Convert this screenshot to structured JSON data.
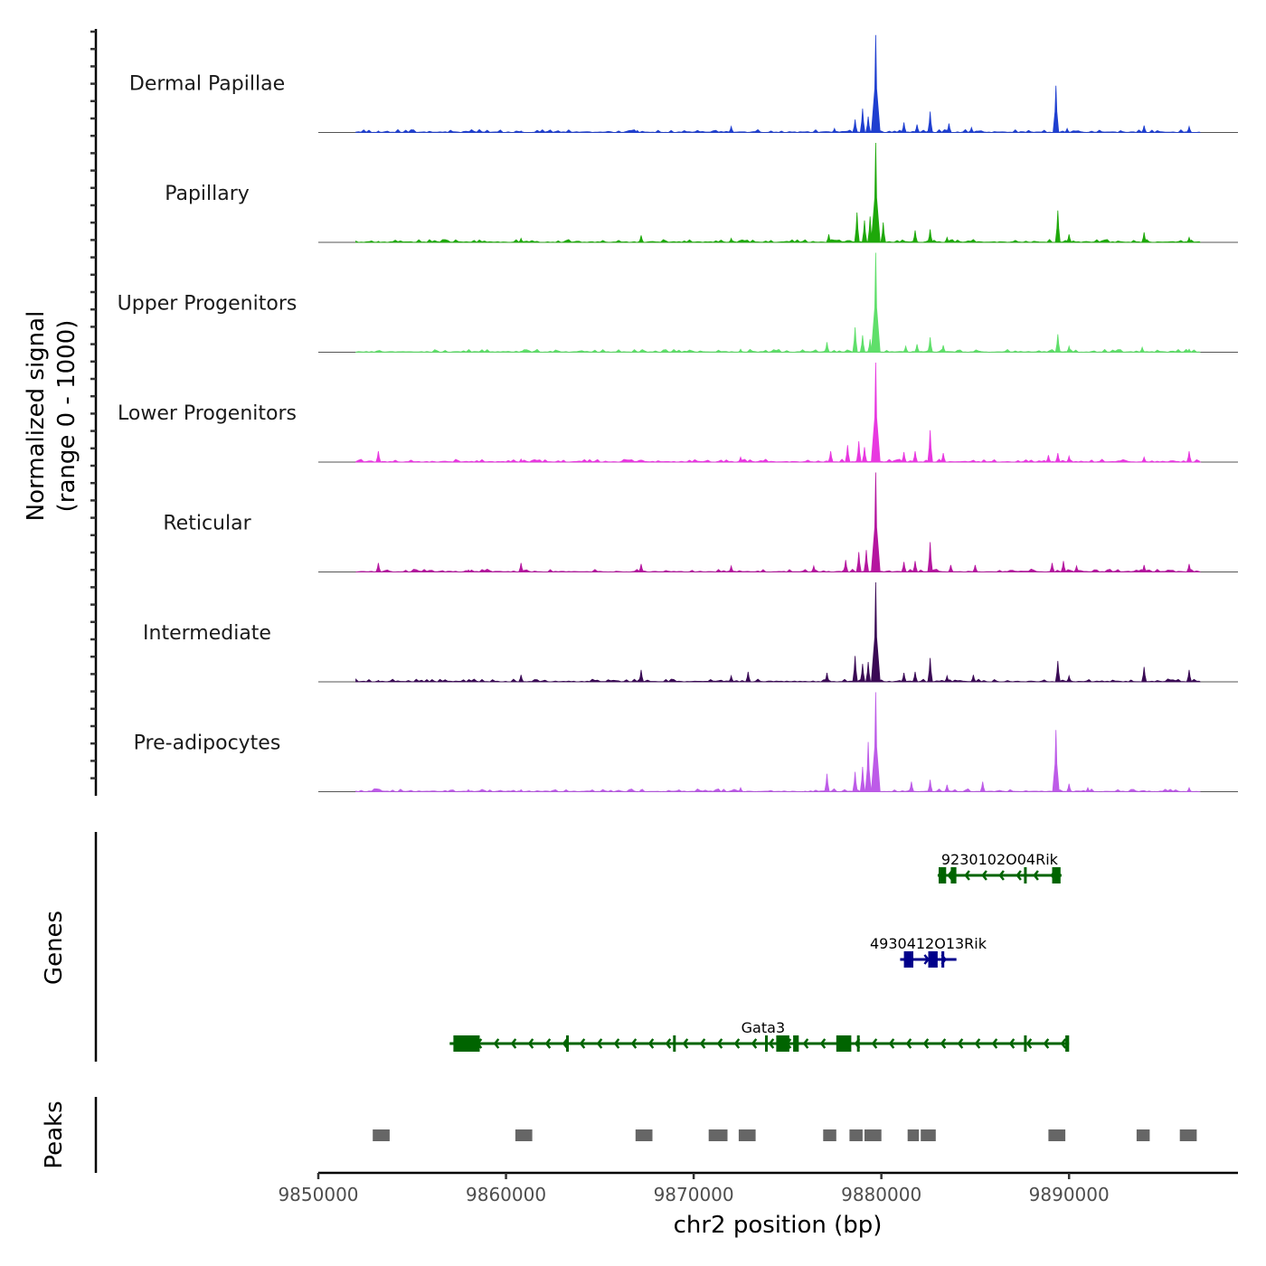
{
  "chart_data": {
    "type": "area",
    "title": "",
    "chromosome": "chr2",
    "xlabel": "chr2 position (bp)",
    "ylabel": "Normalized signal\n(range 0 - 1000)",
    "xlim": [
      9850000,
      9899000
    ],
    "ylim": [
      0,
      1000
    ],
    "x_ticks": [
      9850000,
      9860000,
      9870000,
      9880000,
      9890000
    ],
    "x_tick_labels": [
      "9850000",
      "9860000",
      "9870000",
      "9880000",
      "9890000"
    ],
    "panel_labels": {
      "genes": "Genes",
      "peaks": "Peaks"
    },
    "series": [
      {
        "name": "Dermal Papillae",
        "color": "#1f3fd0",
        "points": [
          [
            9853200,
            15
          ],
          [
            9858000,
            10
          ],
          [
            9860800,
            15
          ],
          [
            9867000,
            20
          ],
          [
            9872000,
            60
          ],
          [
            9877500,
            40
          ],
          [
            9878600,
            130
          ],
          [
            9879000,
            240
          ],
          [
            9879300,
            160
          ],
          [
            9879700,
            980
          ],
          [
            9881200,
            100
          ],
          [
            9881900,
            80
          ],
          [
            9882600,
            210
          ],
          [
            9883600,
            90
          ],
          [
            9884800,
            50
          ],
          [
            9889300,
            470
          ],
          [
            9889900,
            40
          ],
          [
            9894000,
            70
          ],
          [
            9896400,
            60
          ]
        ]
      },
      {
        "name": "Papillary",
        "color": "#1ea80a",
        "points": [
          [
            9853200,
            10
          ],
          [
            9860800,
            40
          ],
          [
            9867200,
            70
          ],
          [
            9872000,
            40
          ],
          [
            9877200,
            80
          ],
          [
            9878700,
            300
          ],
          [
            9879100,
            220
          ],
          [
            9879400,
            260
          ],
          [
            9879700,
            1000
          ],
          [
            9880100,
            200
          ],
          [
            9881800,
            120
          ],
          [
            9882600,
            130
          ],
          [
            9883500,
            50
          ],
          [
            9889400,
            320
          ],
          [
            9890000,
            80
          ],
          [
            9894000,
            100
          ],
          [
            9896400,
            50
          ]
        ]
      },
      {
        "name": "Upper Progenitors",
        "color": "#5fdf6a",
        "points": [
          [
            9860800,
            10
          ],
          [
            9867200,
            20
          ],
          [
            9872500,
            30
          ],
          [
            9877100,
            100
          ],
          [
            9878600,
            250
          ],
          [
            9879000,
            170
          ],
          [
            9879400,
            130
          ],
          [
            9879700,
            1000
          ],
          [
            9881300,
            60
          ],
          [
            9881900,
            80
          ],
          [
            9882600,
            150
          ],
          [
            9883300,
            70
          ],
          [
            9889400,
            180
          ],
          [
            9890000,
            60
          ],
          [
            9893900,
            50
          ],
          [
            9896400,
            30
          ]
        ]
      },
      {
        "name": "Lower Progenitors",
        "color": "#e838e0",
        "points": [
          [
            9853200,
            110
          ],
          [
            9860800,
            30
          ],
          [
            9867200,
            20
          ],
          [
            9872500,
            50
          ],
          [
            9877300,
            110
          ],
          [
            9878200,
            170
          ],
          [
            9878800,
            210
          ],
          [
            9879100,
            150
          ],
          [
            9879700,
            1000
          ],
          [
            9881200,
            100
          ],
          [
            9881800,
            110
          ],
          [
            9882600,
            320
          ],
          [
            9883300,
            90
          ],
          [
            9888900,
            70
          ],
          [
            9889400,
            90
          ],
          [
            9890000,
            60
          ],
          [
            9894000,
            50
          ],
          [
            9896400,
            110
          ]
        ]
      },
      {
        "name": "Reticular",
        "color": "#b5169f",
        "points": [
          [
            9853200,
            90
          ],
          [
            9858000,
            20
          ],
          [
            9860800,
            90
          ],
          [
            9867200,
            80
          ],
          [
            9872000,
            60
          ],
          [
            9876400,
            60
          ],
          [
            9878100,
            120
          ],
          [
            9878800,
            200
          ],
          [
            9879200,
            220
          ],
          [
            9879700,
            1000
          ],
          [
            9881200,
            100
          ],
          [
            9881800,
            110
          ],
          [
            9882600,
            300
          ],
          [
            9883700,
            70
          ],
          [
            9885000,
            70
          ],
          [
            9889100,
            90
          ],
          [
            9889700,
            110
          ],
          [
            9890400,
            60
          ],
          [
            9894000,
            70
          ],
          [
            9896400,
            80
          ]
        ]
      },
      {
        "name": "Intermediate",
        "color": "#3a0a55",
        "points": [
          [
            9853200,
            15
          ],
          [
            9860800,
            70
          ],
          [
            9867200,
            120
          ],
          [
            9872000,
            60
          ],
          [
            9872900,
            100
          ],
          [
            9877100,
            90
          ],
          [
            9878600,
            260
          ],
          [
            9879000,
            180
          ],
          [
            9879300,
            200
          ],
          [
            9879700,
            1000
          ],
          [
            9881200,
            90
          ],
          [
            9881800,
            100
          ],
          [
            9882600,
            240
          ],
          [
            9883500,
            60
          ],
          [
            9884900,
            70
          ],
          [
            9889400,
            210
          ],
          [
            9890000,
            60
          ],
          [
            9894000,
            150
          ],
          [
            9896400,
            120
          ]
        ]
      },
      {
        "name": "Pre-adipocytes",
        "color": "#bd5be8",
        "points": [
          [
            9853200,
            20
          ],
          [
            9858000,
            20
          ],
          [
            9860800,
            20
          ],
          [
            9867200,
            20
          ],
          [
            9872500,
            40
          ],
          [
            9877100,
            180
          ],
          [
            9878600,
            200
          ],
          [
            9879000,
            250
          ],
          [
            9879300,
            500
          ],
          [
            9879700,
            1000
          ],
          [
            9881600,
            100
          ],
          [
            9882600,
            120
          ],
          [
            9883500,
            70
          ],
          [
            9885400,
            100
          ],
          [
            9889300,
            620
          ],
          [
            9890000,
            80
          ],
          [
            9891000,
            40
          ],
          [
            9896400,
            40
          ]
        ]
      }
    ],
    "genes": [
      {
        "name": "9230102O04Rik",
        "strand": "-",
        "color": "#006400",
        "start": 9883000,
        "end": 9889600,
        "exons": [
          [
            9883050,
            9883450
          ],
          [
            9883700,
            9884000
          ],
          [
            9887600,
            9887700
          ],
          [
            9889100,
            9889550
          ]
        ]
      },
      {
        "name": "4930412O13Rik",
        "strand": "+",
        "color": "#00008b",
        "start": 9881000,
        "end": 9884000,
        "exons": [
          [
            9881200,
            9881700
          ],
          [
            9882500,
            9883000
          ],
          [
            9883200,
            9883350
          ]
        ]
      },
      {
        "name": "Gata3",
        "strand": "-",
        "color": "#006400",
        "start": 9857000,
        "end": 9890000,
        "exons": [
          [
            9857200,
            9858600
          ],
          [
            9863200,
            9863250
          ],
          [
            9868900,
            9868950
          ],
          [
            9873800,
            9873900
          ],
          [
            9874400,
            9875100
          ],
          [
            9875300,
            9875600
          ],
          [
            9877600,
            9878400
          ],
          [
            9878700,
            9878800
          ],
          [
            9887600,
            9887700
          ],
          [
            9889800,
            9890000
          ]
        ]
      }
    ],
    "peaks": [
      [
        9852900,
        9853800
      ],
      [
        9860500,
        9861400
      ],
      [
        9866900,
        9867800
      ],
      [
        9870800,
        9871800
      ],
      [
        9872400,
        9873300
      ],
      [
        9876900,
        9877600
      ],
      [
        9878300,
        9879000
      ],
      [
        9879100,
        9880000
      ],
      [
        9881400,
        9882000
      ],
      [
        9882100,
        9882900
      ],
      [
        9888900,
        9889800
      ],
      [
        9893600,
        9894300
      ],
      [
        9895900,
        9896800
      ]
    ],
    "grid": false,
    "legend": "none"
  }
}
